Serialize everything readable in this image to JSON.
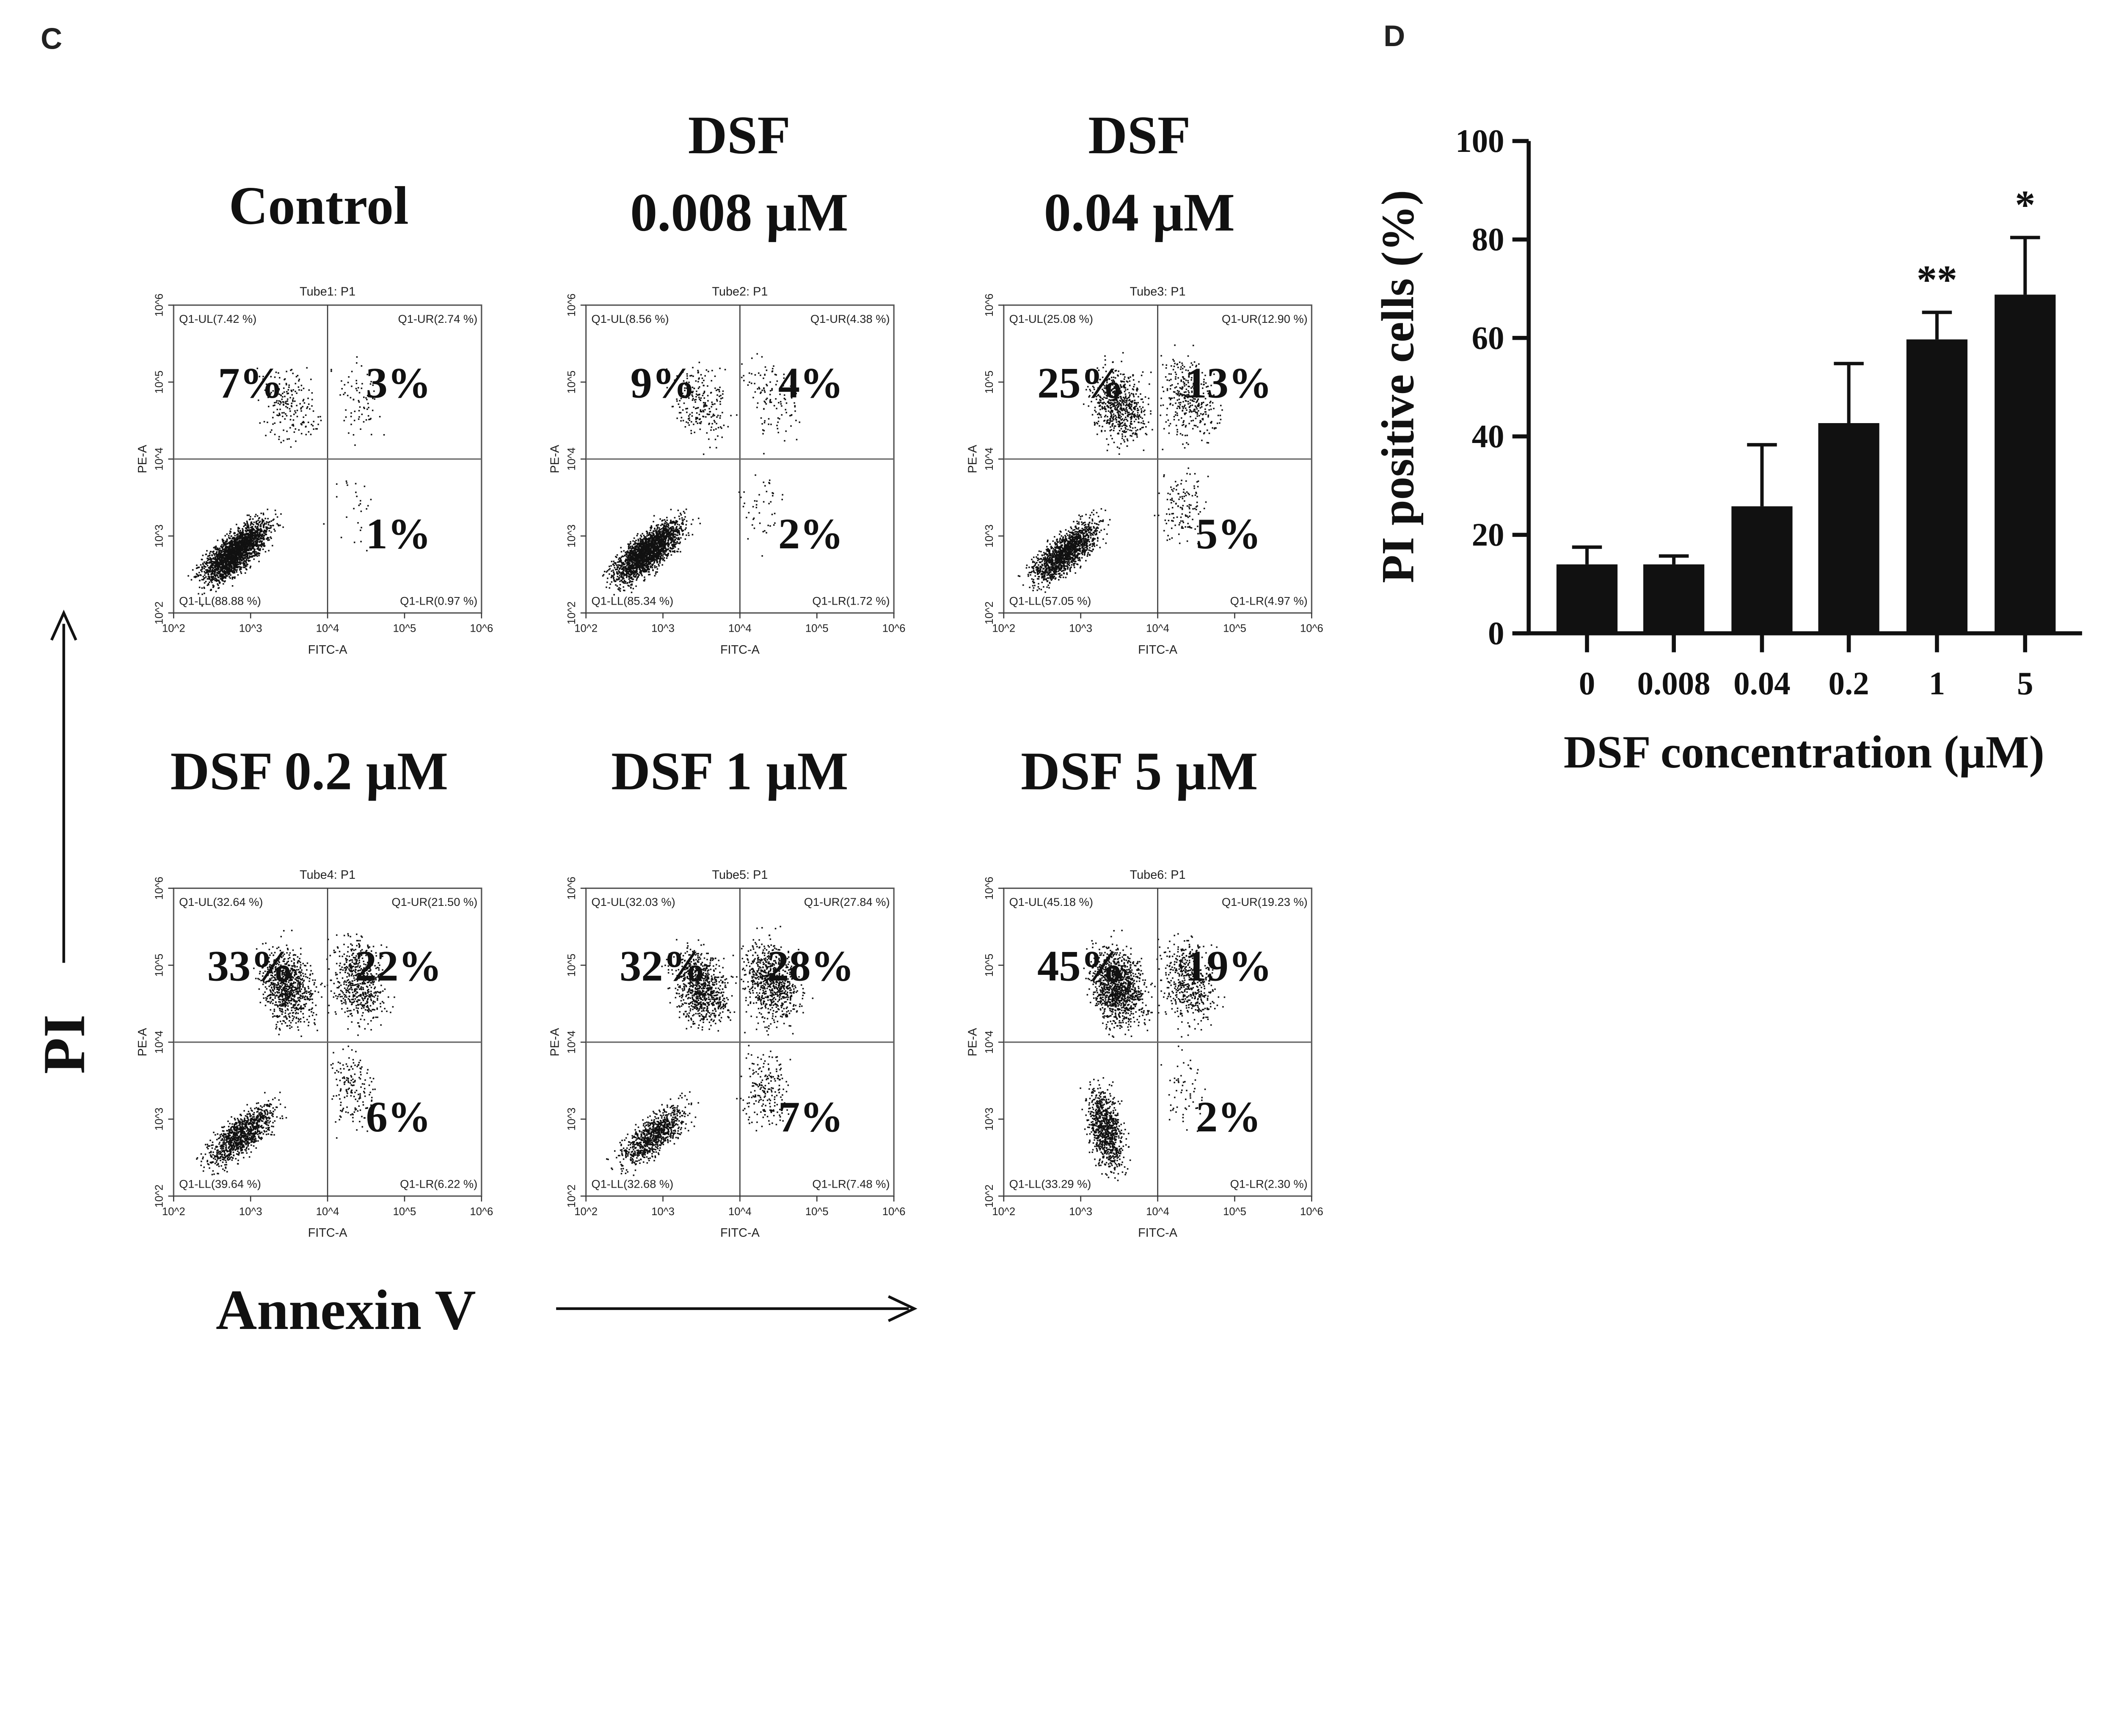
{
  "panel_c": {
    "label": "C",
    "y_axis_label": "PI",
    "x_axis_label": "Annexin V",
    "plot_x_axis": "FITC-A",
    "plot_y_axis": "PE-A",
    "tick_labels": [
      "10^2",
      "10^3",
      "10^4",
      "10^5",
      "10^6"
    ],
    "plots": [
      {
        "title_lines": [
          "Control"
        ],
        "tube": "Tube1: P1",
        "ul": "Q1-UL(7.42 %)",
        "ur": "Q1-UR(2.74 %)",
        "ll": "Q1-LL(88.88 %)",
        "lr": "Q1-LR(0.97 %)",
        "big_ul": "7%",
        "big_ur": "3%",
        "big_lr": "1%",
        "fractions": [
          7.42,
          2.74,
          88.88,
          0.97
        ]
      },
      {
        "title_lines": [
          "DSF",
          "0.008 µM"
        ],
        "tube": "Tube2: P1",
        "ul": "Q1-UL(8.56 %)",
        "ur": "Q1-UR(4.38 %)",
        "ll": "Q1-LL(85.34 %)",
        "lr": "Q1-LR(1.72 %)",
        "big_ul": "9%",
        "big_ur": "4%",
        "big_lr": "2%",
        "fractions": [
          8.56,
          4.38,
          85.34,
          1.72
        ]
      },
      {
        "title_lines": [
          "DSF",
          "0.04 µM"
        ],
        "tube": "Tube3: P1",
        "ul": "Q1-UL(25.08 %)",
        "ur": "Q1-UR(12.90 %)",
        "ll": "Q1-LL(57.05 %)",
        "lr": "Q1-LR(4.97 %)",
        "big_ul": "25%",
        "big_ur": "13%",
        "big_lr": "5%",
        "fractions": [
          25.08,
          12.9,
          57.05,
          4.97
        ]
      },
      {
        "title_lines": [
          "DSF 0.2 µM"
        ],
        "tube": "Tube4: P1",
        "ul": "Q1-UL(32.64 %)",
        "ur": "Q1-UR(21.50 %)",
        "ll": "Q1-LL(39.64 %)",
        "lr": "Q1-LR(6.22 %)",
        "big_ul": "33%",
        "big_ur": "22%",
        "big_lr": "6%",
        "fractions": [
          32.64,
          21.5,
          39.64,
          6.22
        ]
      },
      {
        "title_lines": [
          "DSF 1 µM"
        ],
        "tube": "Tube5: P1",
        "ul": "Q1-UL(32.03 %)",
        "ur": "Q1-UR(27.84 %)",
        "ll": "Q1-LL(32.68 %)",
        "lr": "Q1-LR(7.48 %)",
        "big_ul": "32%",
        "big_ur": "28%",
        "big_lr": "7%",
        "fractions": [
          32.03,
          27.84,
          32.68,
          7.48
        ]
      },
      {
        "title_lines": [
          "DSF 5 µM"
        ],
        "tube": "Tube6: P1",
        "ul": "Q1-UL(45.18 %)",
        "ur": "Q1-UR(19.23 %)",
        "ll": "Q1-LL(33.29 %)",
        "lr": "Q1-LR(2.30 %)",
        "big_ul": "45%",
        "big_ur": "19%",
        "big_lr": "2%",
        "fractions": [
          45.18,
          19.23,
          33.29,
          2.3
        ]
      }
    ]
  },
  "chart_data": {
    "label": "D",
    "type": "bar",
    "categories": [
      "0",
      "0.008",
      "0.04",
      "0.2",
      "1",
      "5"
    ],
    "values": [
      14.0,
      14.0,
      25.8,
      42.7,
      59.7,
      68.8
    ],
    "error_upper": [
      17.5,
      15.7,
      38.3,
      54.8,
      65.2,
      80.4
    ],
    "significance": [
      "",
      "",
      "",
      "",
      "**",
      "*"
    ],
    "xlabel": "DSF concentration (µM)",
    "ylabel": "PI positive cells (%)",
    "ylim": [
      0,
      100
    ],
    "yticks": [
      "0",
      "20",
      "40",
      "60",
      "80",
      "100"
    ],
    "bar_color": "#111111",
    "grid": false
  }
}
